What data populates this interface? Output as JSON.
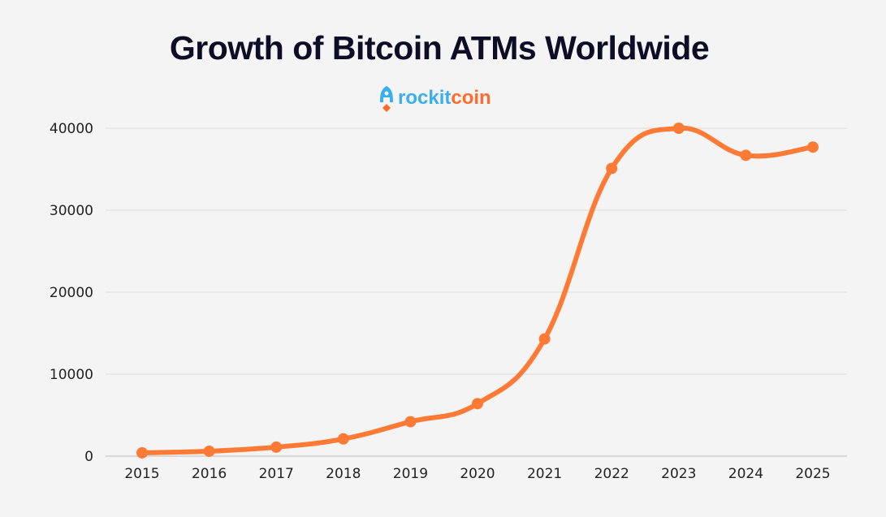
{
  "chart_data": {
    "type": "line",
    "title": "Growth of Bitcoin ATMs Worldwide",
    "brand": "rockitcoin",
    "brand_parts": [
      "rockit",
      "coin"
    ],
    "categories": [
      "2015",
      "2016",
      "2017",
      "2018",
      "2019",
      "2020",
      "2021",
      "2022",
      "2023",
      "2024",
      "2025"
    ],
    "series": [
      {
        "name": "Bitcoin ATMs",
        "color": "#ff7a35",
        "values": [
          400,
          600,
          1100,
          2100,
          4200,
          6400,
          14300,
          35100,
          40000,
          36700,
          37700
        ]
      }
    ],
    "yticks": [
      0,
      10000,
      20000,
      30000,
      40000
    ],
    "ylim": [
      0,
      40000
    ],
    "xlabel": "",
    "ylabel": "",
    "grid": true,
    "legend": "none"
  }
}
